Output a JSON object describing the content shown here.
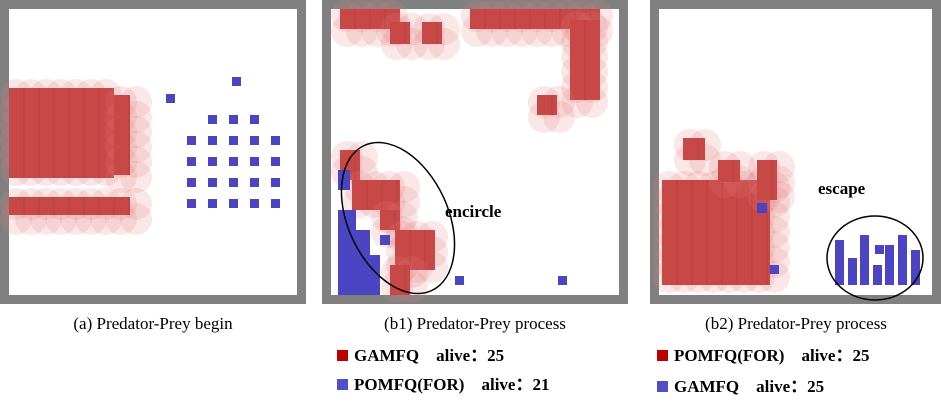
{
  "panels": [
    {
      "caption": "(a) Predator-Prey begin"
    },
    {
      "caption": "(b1) Predator-Prey process",
      "annotation": "encircle",
      "legend": [
        "GAMFQ　alive：25",
        "POMFQ(FOR)　alive：21"
      ]
    },
    {
      "caption": "(b2) Predator-Prey process",
      "annotation": "escape",
      "legend": [
        "POMFQ(FOR)　alive：25",
        "GAMFQ　alive：25"
      ]
    }
  ]
}
